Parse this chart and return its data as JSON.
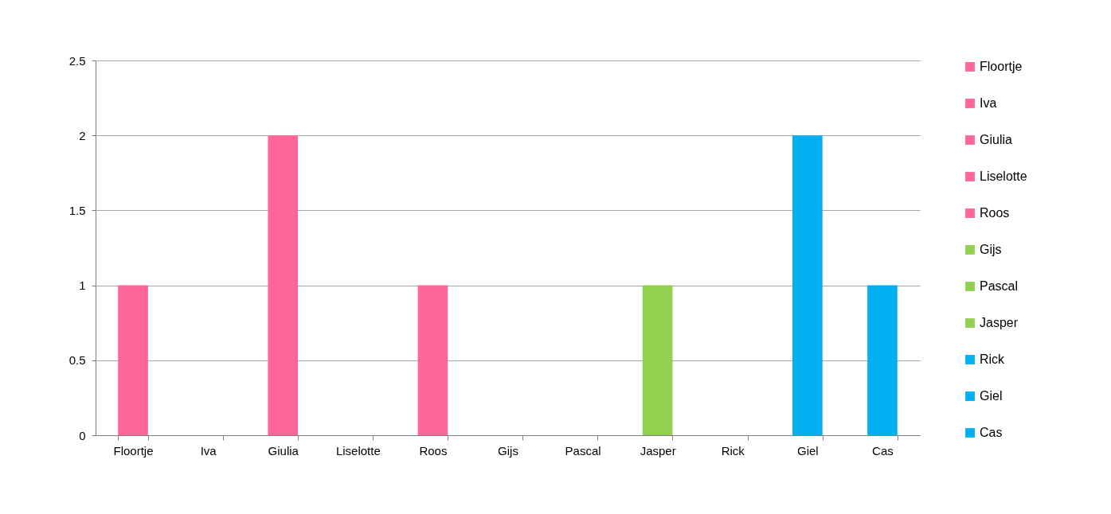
{
  "chart_data": {
    "type": "bar",
    "stacked": true,
    "categories": [
      "Floortje",
      "Iva",
      "Giulia",
      "Liselotte",
      "Roos",
      "Gijs",
      "Pascal",
      "Jasper",
      "Rick",
      "Giel",
      "Cas"
    ],
    "series": [
      {
        "name": "Floortje",
        "color": "#ff6699",
        "values": [
          1,
          null,
          null,
          null,
          null,
          null,
          null,
          null,
          null,
          null,
          null
        ]
      },
      {
        "name": "Iva",
        "color": "#ff6699",
        "values": [
          null,
          0,
          null,
          null,
          null,
          null,
          null,
          null,
          null,
          null,
          null
        ]
      },
      {
        "name": "Giulia",
        "color": "#ff6699",
        "values": [
          null,
          null,
          2,
          null,
          null,
          null,
          null,
          null,
          null,
          null,
          null
        ]
      },
      {
        "name": "Liselotte",
        "color": "#ff6699",
        "values": [
          null,
          null,
          null,
          0,
          null,
          null,
          null,
          null,
          null,
          null,
          null
        ]
      },
      {
        "name": "Roos",
        "color": "#ff6699",
        "values": [
          null,
          null,
          null,
          null,
          1,
          null,
          null,
          null,
          null,
          null,
          null
        ]
      },
      {
        "name": "Gijs",
        "color": "#92d050",
        "values": [
          null,
          null,
          null,
          null,
          null,
          0,
          null,
          null,
          null,
          null,
          null
        ]
      },
      {
        "name": "Pascal",
        "color": "#92d050",
        "values": [
          null,
          null,
          null,
          null,
          null,
          null,
          0,
          null,
          null,
          null,
          null
        ]
      },
      {
        "name": "Jasper",
        "color": "#92d050",
        "values": [
          null,
          null,
          null,
          null,
          null,
          null,
          null,
          1,
          null,
          null,
          null
        ]
      },
      {
        "name": "Rick",
        "color": "#00b0f0",
        "values": [
          null,
          null,
          null,
          null,
          null,
          null,
          null,
          null,
          0,
          null,
          null
        ]
      },
      {
        "name": "Giel",
        "color": "#00b0f0",
        "values": [
          null,
          null,
          null,
          null,
          null,
          null,
          null,
          null,
          null,
          2,
          null
        ]
      },
      {
        "name": "Cas",
        "color": "#00b0f0",
        "values": [
          null,
          null,
          null,
          null,
          null,
          null,
          null,
          null,
          null,
          null,
          1
        ]
      }
    ],
    "ylim": [
      0,
      2.5
    ],
    "yticks": [
      0,
      0.5,
      1,
      1.5,
      2,
      2.5
    ],
    "grid": "y",
    "legend": "right"
  }
}
